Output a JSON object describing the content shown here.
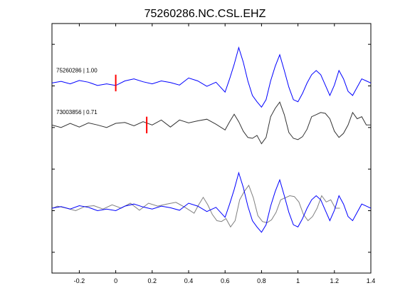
{
  "chart_data": {
    "type": "line",
    "title": "75260286.NC.CSL.EHZ",
    "xlabel": "",
    "ylabel": "",
    "xlim": [
      -0.35,
      1.4
    ],
    "x_ticks": [
      -0.2,
      0,
      0.2,
      0.4,
      0.6,
      0.8,
      1,
      1.2,
      1.4
    ],
    "x_tick_labels": [
      "-0.2",
      "0",
      "0.2",
      "0.4",
      "0.6",
      "0.8",
      "1",
      "1.2",
      "1.4"
    ],
    "y_ticks": [
      0.5,
      1.5,
      2.5,
      3.5,
      4.5,
      5.5
    ],
    "grid": false,
    "colors": {
      "blue": "#0000ff",
      "dark": "#333333",
      "gray": "#808080",
      "pick": "#ff0000",
      "axis": "#000000"
    },
    "traces": [
      {
        "label": "75260286 | 1.00",
        "color": "#0000ff",
        "baseline": 4.57,
        "pick_time": 0.0,
        "pick_half_height": 0.2,
        "x": [
          -0.35,
          -0.3,
          -0.25,
          -0.2,
          -0.15,
          -0.1,
          -0.05,
          0.0,
          0.05,
          0.1,
          0.15,
          0.2,
          0.25,
          0.3,
          0.35,
          0.4,
          0.45,
          0.5,
          0.55,
          0.6,
          0.625,
          0.65,
          0.675,
          0.7,
          0.725,
          0.75,
          0.775,
          0.8,
          0.825,
          0.85,
          0.875,
          0.9,
          0.925,
          0.95,
          0.975,
          1.0,
          1.025,
          1.05,
          1.075,
          1.1,
          1.125,
          1.15,
          1.175,
          1.2,
          1.225,
          1.25,
          1.275,
          1.3,
          1.325,
          1.35,
          1.375,
          1.4
        ],
        "y": [
          0.0,
          0.04,
          -0.02,
          0.06,
          0.02,
          -0.06,
          -0.02,
          -0.06,
          0.05,
          0.1,
          0.03,
          -0.02,
          0.05,
          0.01,
          -0.05,
          0.12,
          0.05,
          -0.08,
          0.02,
          -0.22,
          0.1,
          0.45,
          0.85,
          0.5,
          0.05,
          -0.3,
          -0.45,
          -0.58,
          -0.4,
          0.05,
          0.4,
          0.68,
          0.3,
          -0.1,
          -0.4,
          -0.45,
          -0.25,
          0.0,
          0.2,
          0.3,
          0.2,
          -0.05,
          -0.3,
          -0.05,
          0.3,
          0.1,
          -0.2,
          -0.3,
          -0.1,
          0.1,
          0.05,
          0.0
        ]
      },
      {
        "label": "73003856 | 0.71",
        "color": "#333333",
        "baseline": 3.56,
        "pick_time": 0.17,
        "pick_half_height": 0.2,
        "x": [
          -0.35,
          -0.3,
          -0.25,
          -0.2,
          -0.15,
          -0.1,
          -0.05,
          0.0,
          0.05,
          0.1,
          0.15,
          0.2,
          0.25,
          0.3,
          0.35,
          0.4,
          0.45,
          0.5,
          0.55,
          0.6,
          0.625,
          0.65,
          0.675,
          0.7,
          0.725,
          0.75,
          0.775,
          0.8,
          0.825,
          0.85,
          0.875,
          0.9,
          0.925,
          0.95,
          0.975,
          1.0,
          1.025,
          1.05,
          1.075,
          1.1,
          1.125,
          1.15,
          1.175,
          1.2,
          1.225,
          1.25,
          1.275,
          1.3,
          1.325,
          1.35,
          1.375,
          1.4
        ],
        "y": [
          0.0,
          -0.06,
          0.04,
          -0.05,
          0.05,
          0.0,
          -0.06,
          0.04,
          0.06,
          -0.02,
          0.08,
          0.0,
          0.12,
          -0.05,
          0.12,
          0.05,
          0.1,
          0.14,
          0.02,
          -0.12,
          0.08,
          0.26,
          0.08,
          -0.15,
          -0.3,
          -0.32,
          -0.25,
          -0.45,
          -0.3,
          0.2,
          0.4,
          0.55,
          0.25,
          -0.18,
          -0.32,
          -0.35,
          -0.28,
          -0.1,
          0.2,
          0.25,
          0.3,
          0.28,
          0.15,
          -0.15,
          -0.3,
          -0.2,
          0.0,
          0.3,
          0.15,
          0.2,
          0.0,
          0.0
        ]
      }
    ]
  }
}
